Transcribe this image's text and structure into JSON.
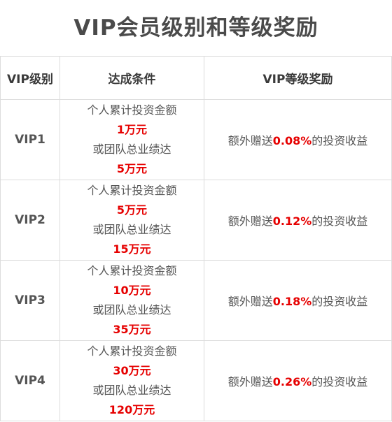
{
  "title": "VIP会员级别和等级奖励",
  "headers": [
    "VIP级别",
    "达成条件",
    "VIP等级奖励"
  ],
  "accent_color": "#e60000",
  "rows": [
    {
      "level": "VIP1",
      "cond_line1": "个人累计投资金额",
      "cond_amount1": "1万元",
      "cond_line2": "或团队总业绩达",
      "cond_amount2": "5万元",
      "reward_prefix": "额外赠送",
      "reward_rate": "0.08%",
      "reward_suffix": "的投资收益"
    },
    {
      "level": "VIP2",
      "cond_line1": "个人累计投资金额",
      "cond_amount1": "5万元",
      "cond_line2": "或团队总业绩达",
      "cond_amount2": "15万元",
      "reward_prefix": "额外赠送",
      "reward_rate": "0.12%",
      "reward_suffix": "的投资收益"
    },
    {
      "level": "VIP3",
      "cond_line1": "个人累计投资金额",
      "cond_amount1": "10万元",
      "cond_line2": "或团队总业绩达",
      "cond_amount2": "35万元",
      "reward_prefix": "额外赠送",
      "reward_rate": "0.18%",
      "reward_suffix": "的投资收益"
    },
    {
      "level": "VIP4",
      "cond_line1": "个人累计投资金额",
      "cond_amount1": "30万元",
      "cond_line2": "或团队总业绩达",
      "cond_amount2": "120万元",
      "reward_prefix": "额外赠送",
      "reward_rate": "0.26%",
      "reward_suffix": "的投资收益"
    }
  ]
}
